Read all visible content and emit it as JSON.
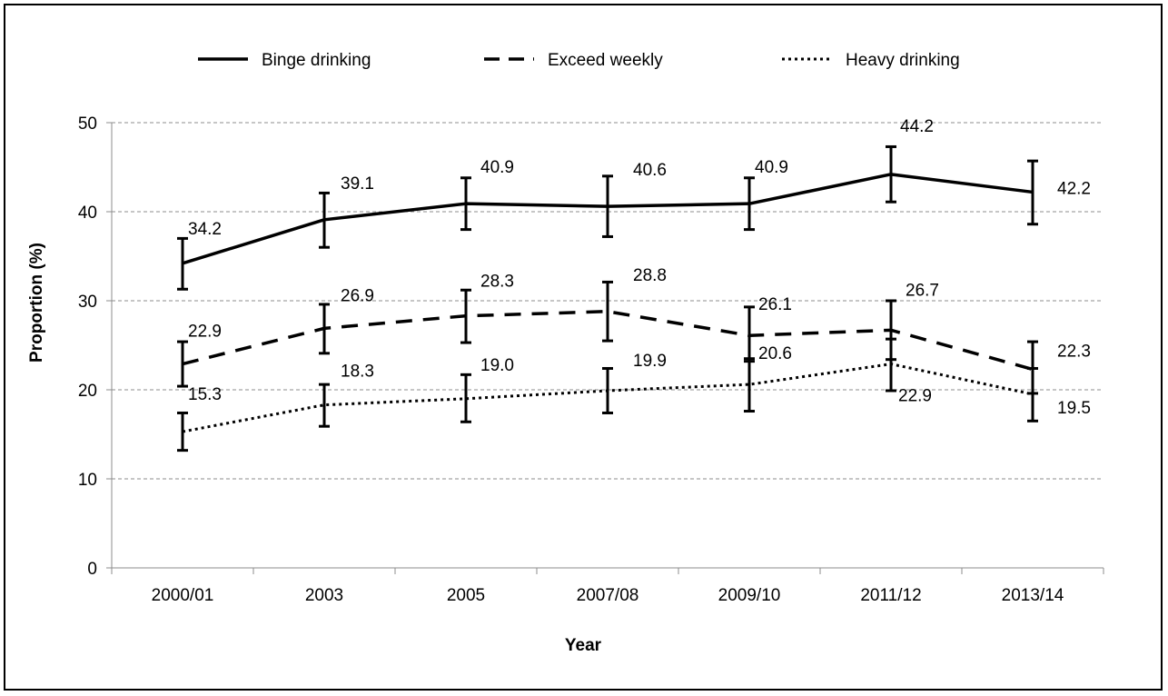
{
  "chart_data": {
    "type": "line",
    "title": "",
    "xlabel": "Year",
    "ylabel": "Proportion (%)",
    "ylim": [
      0,
      50
    ],
    "yticks": [
      0,
      10,
      20,
      30,
      40,
      50
    ],
    "grid": "horizontal dashed",
    "legend_position": "top",
    "categories": [
      "2000/01",
      "2003",
      "2005",
      "2007/08",
      "2009/10",
      "2011/12",
      "2013/14"
    ],
    "series": [
      {
        "name": "Binge drinking",
        "line_style": "solid",
        "color": "#000000",
        "values": [
          34.2,
          39.1,
          40.9,
          40.6,
          40.9,
          44.2,
          42.2
        ],
        "labels": [
          "34.2",
          "39.1",
          "40.9",
          "40.6",
          "40.9",
          "44.2",
          "42.2"
        ],
        "error_low": [
          31.3,
          36.0,
          38.0,
          37.2,
          38.0,
          41.1,
          38.6
        ],
        "error_high": [
          37.0,
          42.1,
          43.8,
          44.0,
          43.8,
          47.3,
          45.7
        ]
      },
      {
        "name": "Exceed weekly",
        "line_style": "dashed",
        "color": "#000000",
        "values": [
          22.9,
          26.9,
          28.3,
          28.8,
          26.1,
          26.7,
          22.3
        ],
        "labels": [
          "22.9",
          "26.9",
          "28.3",
          "28.8",
          "26.1",
          "26.7",
          "22.3"
        ],
        "error_low": [
          20.4,
          24.1,
          25.3,
          25.5,
          23.2,
          23.4,
          19.6
        ],
        "error_high": [
          25.4,
          29.6,
          31.2,
          32.1,
          29.3,
          30.0,
          25.4
        ]
      },
      {
        "name": "Heavy drinking",
        "line_style": "dotted",
        "color": "#000000",
        "values": [
          15.3,
          18.3,
          19.0,
          19.9,
          20.6,
          22.9,
          19.5
        ],
        "labels": [
          "15.3",
          "18.3",
          "19.0",
          "19.9",
          "20.6",
          "22.9",
          "19.5"
        ],
        "error_low": [
          13.2,
          15.9,
          16.4,
          17.4,
          17.6,
          19.9,
          16.5
        ],
        "error_high": [
          17.4,
          20.6,
          21.7,
          22.4,
          23.5,
          25.7,
          22.4
        ]
      }
    ]
  }
}
